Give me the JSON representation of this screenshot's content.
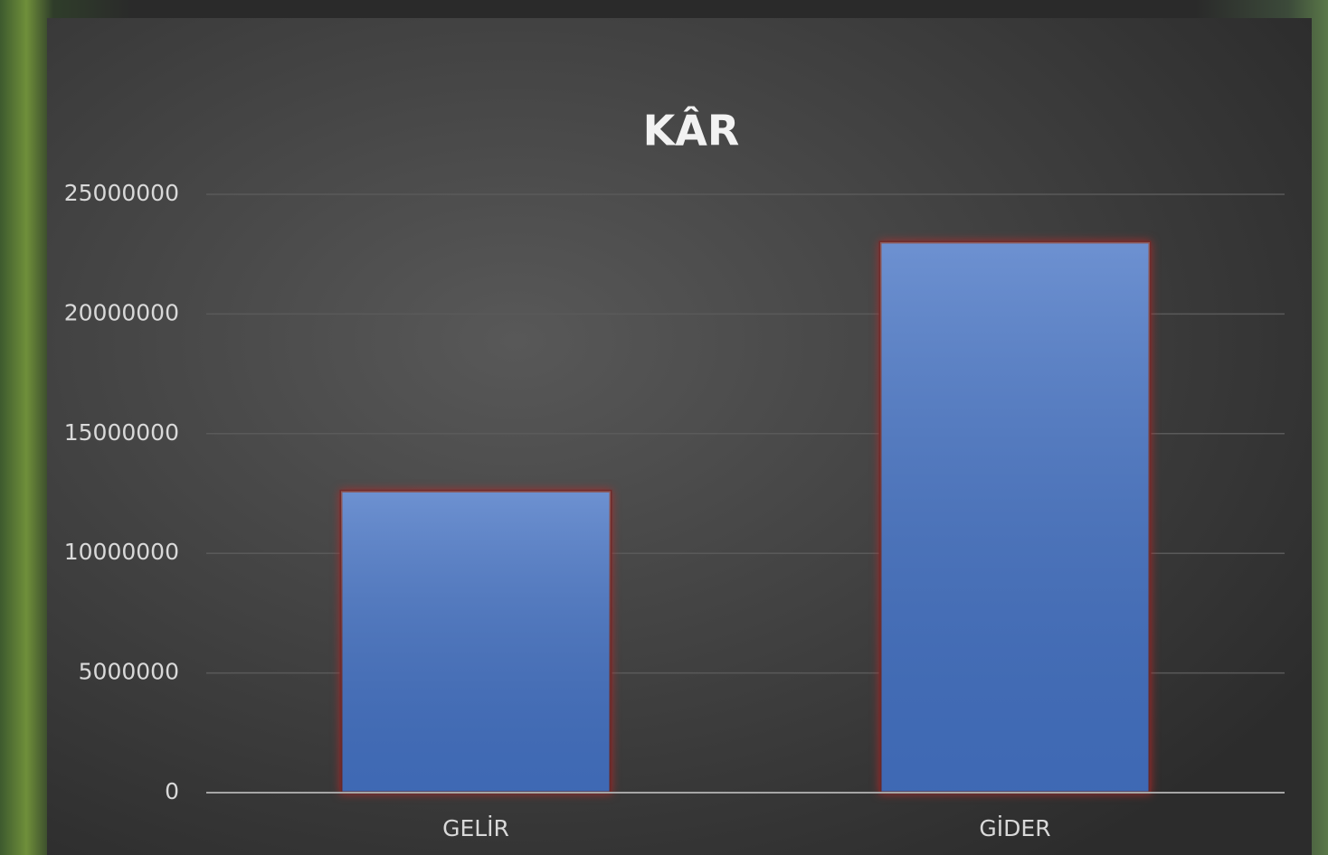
{
  "chart_data": {
    "type": "bar",
    "title": "KÂR",
    "categories": [
      "GELİR",
      "GİDER"
    ],
    "values": [
      12600000,
      23000000
    ],
    "color": "#4472c4",
    "ylim": [
      0,
      25000000
    ],
    "yticks": [
      0,
      5000000,
      10000000,
      15000000,
      20000000,
      25000000
    ],
    "grid": true
  }
}
